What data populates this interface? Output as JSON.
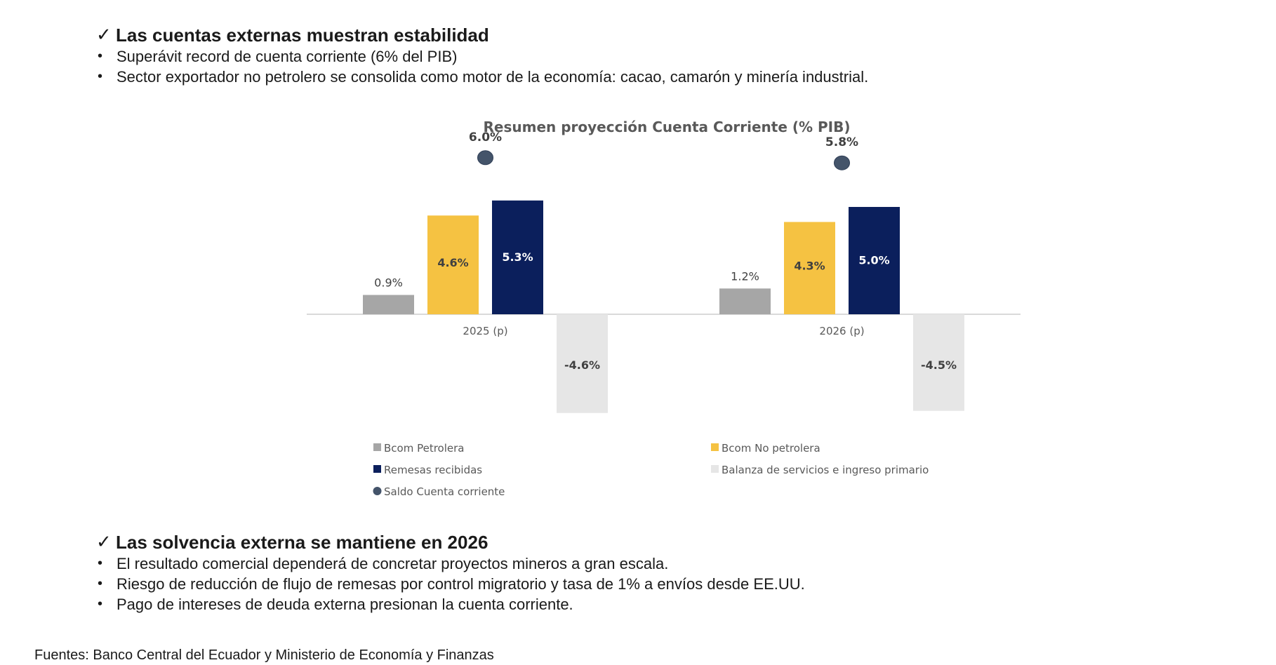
{
  "section1": {
    "check_icon": "✓",
    "heading": "Las cuentas externas muestran estabilidad",
    "bullets": [
      "Superávit record de cuenta corriente (6% del PIB)",
      "Sector exportador no petrolero se consolida como motor de la economía: cacao, camarón y minería industrial."
    ]
  },
  "section2": {
    "check_icon": "✓",
    "heading": "Las solvencia externa se mantiene en 2026",
    "bullets": [
      "El resultado comercial dependerá de concretar proyectos mineros a gran escala.",
      "Riesgo de  reducción de flujo de remesas por control migratorio y tasa de 1% a envíos desde EE.UU.",
      "Pago de intereses de deuda externa presionan la cuenta corriente."
    ]
  },
  "bullet_glyph": "•",
  "source": "Fuentes: Banco Central del Ecuador y Ministerio de Economía y Finanzas",
  "chart_data": {
    "type": "bar",
    "title": "Resumen proyección Cuenta Corriente (% PIB)",
    "categories": [
      "2025 (p)",
      "2026 (p)"
    ],
    "series": [
      {
        "name": "Bcom Petrolera",
        "values": [
          0.9,
          1.2
        ],
        "labels": [
          "0.9%",
          "1.2%"
        ],
        "color": "#a6a6a6",
        "label_color": "#404040",
        "label_position": "above"
      },
      {
        "name": "Bcom No petrolera",
        "values": [
          4.6,
          4.3
        ],
        "labels": [
          "4.6%",
          "4.3%"
        ],
        "color": "#f5c242",
        "label_color": "#404040",
        "label_position": "inside"
      },
      {
        "name": "Remesas recibidas",
        "values": [
          5.3,
          5.0
        ],
        "labels": [
          "5.3%",
          "5.0%"
        ],
        "color": "#0b1f5c",
        "label_color": "#ffffff",
        "label_position": "inside"
      },
      {
        "name": "Balanza de servicios e ingreso primario",
        "values": [
          -4.6,
          -4.5
        ],
        "labels": [
          "-4.6%",
          "-4.5%"
        ],
        "color": "#e6e6e6",
        "label_color": "#404040",
        "label_position": "inside"
      }
    ],
    "markers": {
      "name": "Saldo Cuenta corriente",
      "values": [
        6.0,
        5.8
      ],
      "labels": [
        "6.0%",
        "5.8%"
      ],
      "color": "#44546a"
    },
    "legend_position": "bottom",
    "grid": false
  }
}
